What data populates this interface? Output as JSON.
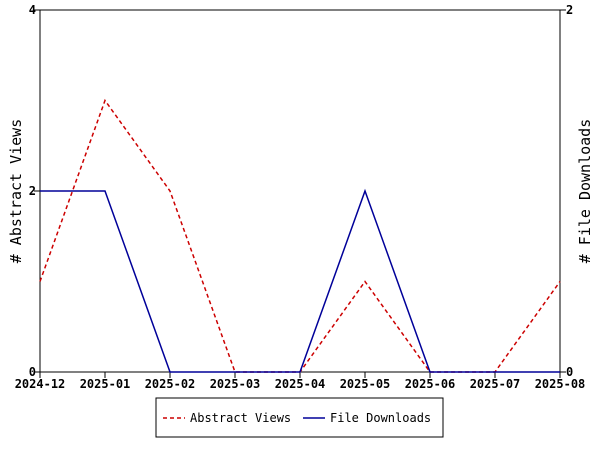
{
  "chart_data": {
    "type": "line",
    "x": [
      "2024-12",
      "2025-01",
      "2025-02",
      "2025-03",
      "2025-04",
      "2025-05",
      "2025-06",
      "2025-07",
      "2025-08"
    ],
    "ylabel": "# Abstract Views",
    "ylabel_right": "# File Downloads",
    "ylim": [
      0,
      4
    ],
    "ylim_right": [
      0,
      2
    ],
    "y_ticks": [
      "0",
      "2",
      "4"
    ],
    "y_ticks_right": [
      "0",
      "2"
    ],
    "grid": false,
    "legend_position": "bottom-center",
    "series": [
      {
        "name": "Abstract Views",
        "axis": "left",
        "color": "#cc0000",
        "style": "dashed",
        "values": [
          1,
          3,
          2,
          0,
          0,
          1,
          0,
          0,
          1
        ]
      },
      {
        "name": "File Downloads",
        "axis": "right",
        "color": "#000099",
        "style": "solid",
        "values": [
          1,
          1,
          0,
          0,
          0,
          1,
          0,
          0,
          0
        ]
      }
    ]
  }
}
